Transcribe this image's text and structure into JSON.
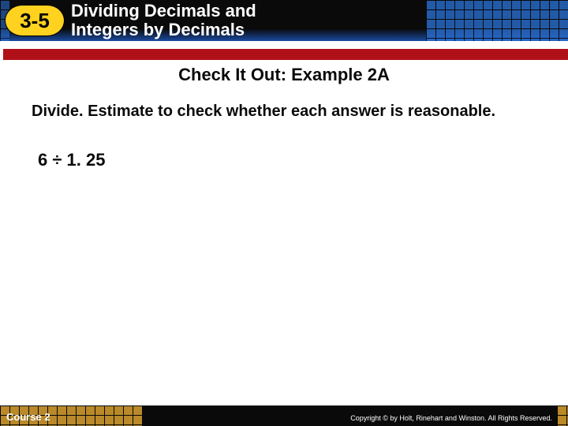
{
  "header": {
    "lesson_number": "3-5",
    "title_line1": "Dividing Decimals and",
    "title_line2": "Integers by Decimals",
    "bg_gradient_top": "#0a0a0a",
    "bg_gradient_bottom": "#1a4aa0",
    "grid_color": "#2a6ed0",
    "badge_bg": "#ffd21f",
    "badge_text_color": "#000000",
    "title_color": "#ffffff",
    "title_fontsize": 22
  },
  "red_stripe": {
    "color": "#b01018"
  },
  "subtitle": {
    "text": "Check It Out: Example 2A",
    "color": "#0a0a0a",
    "fontsize": 22,
    "fontweight": 900
  },
  "body": {
    "instruction": "Divide. Estimate to check whether each answer is reasonable.",
    "problem": "6 ÷ 1. 25",
    "color": "#0a0a0a",
    "fontsize": 20
  },
  "footer": {
    "course": "Course 2",
    "copyright": "Copyright © by Holt, Rinehart and Winston. All Rights Reserved.",
    "bg": "#0a0a0a",
    "grid_color": "#d8a030",
    "text_color": "#ffffff"
  }
}
